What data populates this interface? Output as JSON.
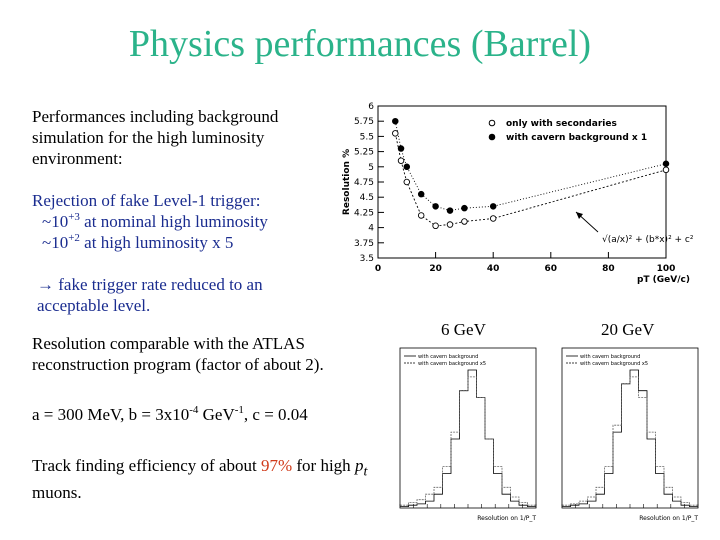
{
  "slide": {
    "title": "Physics performances (Barrel)",
    "bg_text": "Performances including background simulation for the high luminosity environment:",
    "rejection": {
      "heading": "Rejection of fake Level-1 trigger:",
      "line1_pre": "~10",
      "line1_exp": "+3",
      "line1_post": " at nominal high luminosity",
      "line2_pre": "~10",
      "line2_exp": "+2",
      "line2_post": " at high luminosity x 5"
    },
    "arrow_glyph": "→",
    "fake_rate_line1": " fake trigger rate reduced to an",
    "fake_rate_line2": "acceptable level.",
    "resolution_text": "Resolution comparable with the ATLAS reconstruction program (factor of about 2).",
    "params": {
      "a": "a = 300 MeV,  b = 3x10",
      "b_exp": "-4",
      "b_unit": " GeV",
      "b_unit_exp": "-1",
      "c": ",  c = 0.04"
    },
    "tracking": {
      "pre": "Track finding efficiency of about ",
      "pct": "97%",
      "mid": " for high ",
      "pt_p": "p",
      "pt_t": "t",
      "post": " muons."
    },
    "energy_left": "6 GeV",
    "energy_right": "20 GeV"
  },
  "colors": {
    "title": "#2bb38a",
    "blue_text": "#1a2c8f",
    "highlight": "#d03a1a"
  },
  "chart_data": [
    {
      "type": "scatter",
      "ylabel": "Resolution %",
      "xlabel": "pT (GeV/c)",
      "xlim": [
        0,
        100
      ],
      "ylim": [
        3.5,
        6
      ],
      "xticks": [
        "0",
        "20",
        "40",
        "60",
        "80",
        "100"
      ],
      "yticks": [
        "3.5",
        "3.75",
        "4",
        "4.25",
        "4.5",
        "4.75",
        "5",
        "5.25",
        "5.5",
        "5.75",
        "6"
      ],
      "legend_placement": "top-right",
      "annotation": "√(a/x)² + (b*x)² + c²",
      "series": [
        {
          "name": "only with secondaries",
          "marker": "open-circle",
          "x": [
            6,
            8,
            10,
            15,
            20,
            25,
            30,
            40,
            100
          ],
          "y": [
            5.55,
            5.1,
            4.75,
            4.2,
            4.03,
            4.05,
            4.1,
            4.15,
            4.95
          ]
        },
        {
          "name": "with cavern background x 1",
          "marker": "filled-circle",
          "x": [
            6,
            8,
            10,
            15,
            20,
            25,
            30,
            40,
            100
          ],
          "y": [
            5.75,
            5.3,
            5.0,
            4.55,
            4.35,
            4.28,
            4.32,
            4.35,
            5.05
          ]
        }
      ]
    },
    {
      "type": "bar",
      "title": "6 GeV",
      "xlabel": "Resolution on 1/P_T",
      "legend_placement": "top-left",
      "series": [
        {
          "name": "with cavern background",
          "values": [
            0.01,
            0.02,
            0.03,
            0.05,
            0.1,
            0.25,
            0.5,
            0.85,
            1.0,
            0.8,
            0.5,
            0.25,
            0.1,
            0.05,
            0.02,
            0.01
          ]
        },
        {
          "name": "with cavern background x5",
          "values": [
            0.02,
            0.04,
            0.06,
            0.1,
            0.15,
            0.3,
            0.55,
            0.85,
            0.95,
            0.8,
            0.5,
            0.3,
            0.15,
            0.08,
            0.04,
            0.02
          ]
        }
      ]
    },
    {
      "type": "bar",
      "title": "20 GeV",
      "xlabel": "Resolution on 1/P_T",
      "legend_placement": "top-left",
      "series": [
        {
          "name": "with cavern background",
          "values": [
            0.01,
            0.02,
            0.03,
            0.05,
            0.1,
            0.25,
            0.55,
            0.9,
            1.0,
            0.85,
            0.5,
            0.25,
            0.1,
            0.05,
            0.02,
            0.01
          ]
        },
        {
          "name": "with cavern background x5",
          "values": [
            0.02,
            0.03,
            0.05,
            0.08,
            0.15,
            0.3,
            0.6,
            0.9,
            0.95,
            0.8,
            0.55,
            0.3,
            0.15,
            0.08,
            0.04,
            0.02
          ]
        }
      ]
    }
  ]
}
